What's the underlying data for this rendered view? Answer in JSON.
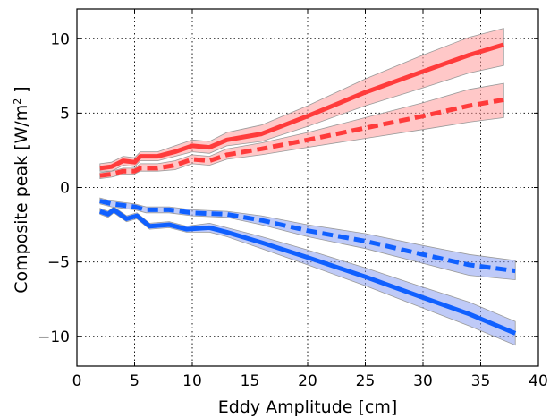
{
  "chart_data": {
    "type": "line",
    "xlabel": "Eddy Amplitude [cm]",
    "ylabel": "Composite peak [W/m",
    "ylabel_sup": "2",
    "ylabel_tail": " ]",
    "xlim": [
      0,
      40
    ],
    "ylim": [
      -12,
      12
    ],
    "xticks": [
      0,
      5,
      10,
      15,
      20,
      25,
      30,
      35,
      40
    ],
    "yticks": [
      -10,
      -5,
      0,
      5,
      10
    ],
    "xtick_labels": [
      "0",
      "5",
      "10",
      "15",
      "20",
      "25",
      "30",
      "35",
      "40"
    ],
    "ytick_labels": [
      "−10",
      "−5",
      "0",
      "5",
      "10"
    ],
    "grid": true,
    "series": [
      {
        "style": "solid",
        "color": "#ff3b3b",
        "band_color": "#ff9a9a",
        "points": [
          {
            "x": 2.0,
            "y": 1.3,
            "lo": 1.1,
            "hi": 1.6
          },
          {
            "x": 3.0,
            "y": 1.4,
            "lo": 1.1,
            "hi": 1.7
          },
          {
            "x": 4.0,
            "y": 1.8,
            "lo": 1.5,
            "hi": 2.1
          },
          {
            "x": 5.0,
            "y": 1.7,
            "lo": 1.4,
            "hi": 2.0
          },
          {
            "x": 5.5,
            "y": 2.1,
            "lo": 1.8,
            "hi": 2.4
          },
          {
            "x": 7.0,
            "y": 2.1,
            "lo": 1.8,
            "hi": 2.4
          },
          {
            "x": 8.5,
            "y": 2.4,
            "lo": 2.1,
            "hi": 2.8
          },
          {
            "x": 10.0,
            "y": 2.8,
            "lo": 2.4,
            "hi": 3.2
          },
          {
            "x": 11.5,
            "y": 2.7,
            "lo": 2.3,
            "hi": 3.1
          },
          {
            "x": 13.0,
            "y": 3.2,
            "lo": 2.8,
            "hi": 3.7
          },
          {
            "x": 16.0,
            "y": 3.6,
            "lo": 3.1,
            "hi": 4.2
          },
          {
            "x": 20.0,
            "y": 4.8,
            "lo": 4.1,
            "hi": 5.5
          },
          {
            "x": 25.0,
            "y": 6.4,
            "lo": 5.5,
            "hi": 7.3
          },
          {
            "x": 30.0,
            "y": 7.8,
            "lo": 6.7,
            "hi": 8.9
          },
          {
            "x": 34.0,
            "y": 8.9,
            "lo": 7.7,
            "hi": 10.1
          },
          {
            "x": 37.0,
            "y": 9.6,
            "lo": 8.2,
            "hi": 10.7
          }
        ]
      },
      {
        "style": "dashed",
        "color": "#ff3b3b",
        "band_color": "#ff9a9a",
        "points": [
          {
            "x": 2.0,
            "y": 0.8,
            "lo": 0.6,
            "hi": 1.0
          },
          {
            "x": 3.0,
            "y": 0.9,
            "lo": 0.7,
            "hi": 1.1
          },
          {
            "x": 4.0,
            "y": 1.1,
            "lo": 0.9,
            "hi": 1.3
          },
          {
            "x": 5.0,
            "y": 1.1,
            "lo": 0.9,
            "hi": 1.3
          },
          {
            "x": 5.5,
            "y": 1.3,
            "lo": 1.1,
            "hi": 1.6
          },
          {
            "x": 7.0,
            "y": 1.3,
            "lo": 1.1,
            "hi": 1.6
          },
          {
            "x": 8.5,
            "y": 1.5,
            "lo": 1.2,
            "hi": 1.8
          },
          {
            "x": 10.0,
            "y": 1.9,
            "lo": 1.6,
            "hi": 2.2
          },
          {
            "x": 11.5,
            "y": 1.8,
            "lo": 1.5,
            "hi": 2.1
          },
          {
            "x": 13.0,
            "y": 2.2,
            "lo": 1.9,
            "hi": 2.6
          },
          {
            "x": 16.0,
            "y": 2.6,
            "lo": 2.2,
            "hi": 3.0
          },
          {
            "x": 20.0,
            "y": 3.2,
            "lo": 2.7,
            "hi": 3.7
          },
          {
            "x": 25.0,
            "y": 4.0,
            "lo": 3.3,
            "hi": 4.7
          },
          {
            "x": 30.0,
            "y": 4.8,
            "lo": 3.9,
            "hi": 5.7
          },
          {
            "x": 34.0,
            "y": 5.5,
            "lo": 4.4,
            "hi": 6.6
          },
          {
            "x": 37.0,
            "y": 5.9,
            "lo": 4.7,
            "hi": 7.0
          }
        ]
      },
      {
        "style": "dashed",
        "color": "#1060ff",
        "band_color": "#8a9ff0",
        "points": [
          {
            "x": 2.0,
            "y": -0.9,
            "lo": -1.1,
            "hi": -0.7
          },
          {
            "x": 3.0,
            "y": -1.1,
            "lo": -1.3,
            "hi": -0.9
          },
          {
            "x": 4.0,
            "y": -1.2,
            "lo": -1.4,
            "hi": -1.0
          },
          {
            "x": 5.0,
            "y": -1.3,
            "lo": -1.5,
            "hi": -1.1
          },
          {
            "x": 6.0,
            "y": -1.5,
            "lo": -1.7,
            "hi": -1.3
          },
          {
            "x": 8.0,
            "y": -1.5,
            "lo": -1.7,
            "hi": -1.3
          },
          {
            "x": 10.0,
            "y": -1.7,
            "lo": -1.9,
            "hi": -1.5
          },
          {
            "x": 13.0,
            "y": -1.8,
            "lo": -2.0,
            "hi": -1.6
          },
          {
            "x": 16.0,
            "y": -2.2,
            "lo": -2.5,
            "hi": -1.9
          },
          {
            "x": 20.0,
            "y": -2.9,
            "lo": -3.3,
            "hi": -2.5
          },
          {
            "x": 25.0,
            "y": -3.6,
            "lo": -4.1,
            "hi": -3.1
          },
          {
            "x": 30.0,
            "y": -4.5,
            "lo": -5.1,
            "hi": -3.9
          },
          {
            "x": 34.0,
            "y": -5.2,
            "lo": -5.9,
            "hi": -4.5
          },
          {
            "x": 38.0,
            "y": -5.6,
            "lo": -6.2,
            "hi": -4.9
          }
        ]
      },
      {
        "style": "solid",
        "color": "#1060ff",
        "band_color": "#8a9ff0",
        "points": [
          {
            "x": 2.0,
            "y": -1.6,
            "lo": -1.8,
            "hi": -1.4
          },
          {
            "x": 2.7,
            "y": -1.8,
            "lo": -2.0,
            "hi": -1.6
          },
          {
            "x": 3.2,
            "y": -1.5,
            "lo": -1.7,
            "hi": -1.3
          },
          {
            "x": 4.3,
            "y": -2.1,
            "lo": -2.3,
            "hi": -1.9
          },
          {
            "x": 5.2,
            "y": -1.9,
            "lo": -2.1,
            "hi": -1.7
          },
          {
            "x": 6.3,
            "y": -2.6,
            "lo": -2.8,
            "hi": -2.4
          },
          {
            "x": 8.0,
            "y": -2.5,
            "lo": -2.7,
            "hi": -2.3
          },
          {
            "x": 9.5,
            "y": -2.8,
            "lo": -3.0,
            "hi": -2.6
          },
          {
            "x": 11.5,
            "y": -2.7,
            "lo": -3.0,
            "hi": -2.4
          },
          {
            "x": 13.0,
            "y": -3.0,
            "lo": -3.3,
            "hi": -2.7
          },
          {
            "x": 16.0,
            "y": -3.7,
            "lo": -4.1,
            "hi": -3.3
          },
          {
            "x": 20.0,
            "y": -4.7,
            "lo": -5.2,
            "hi": -4.2
          },
          {
            "x": 25.0,
            "y": -6.0,
            "lo": -6.6,
            "hi": -5.4
          },
          {
            "x": 30.0,
            "y": -7.4,
            "lo": -8.1,
            "hi": -6.7
          },
          {
            "x": 34.0,
            "y": -8.5,
            "lo": -9.3,
            "hi": -7.7
          },
          {
            "x": 38.0,
            "y": -9.8,
            "lo": -10.6,
            "hi": -9.0
          }
        ]
      }
    ]
  }
}
